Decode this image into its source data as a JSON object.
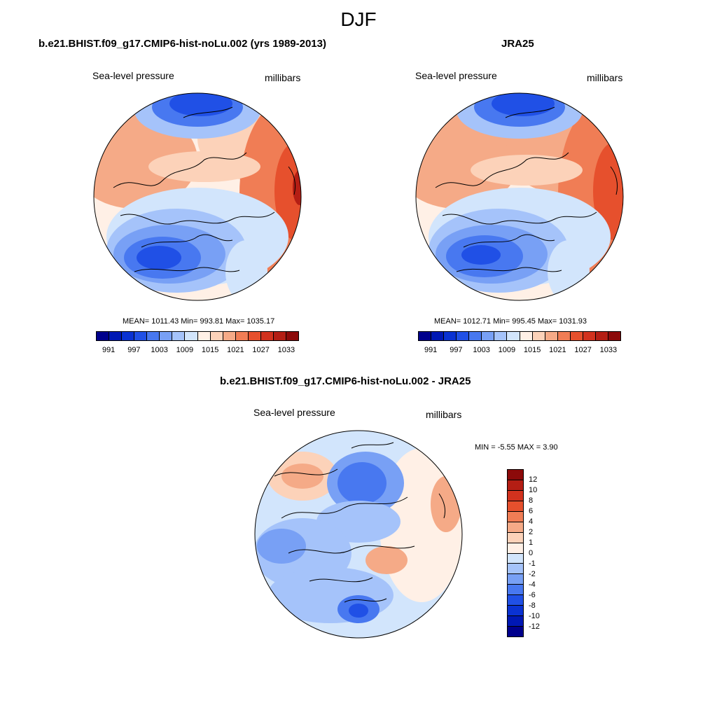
{
  "figure": {
    "title": "DJF"
  },
  "panels": [
    {
      "title": "b.e21.BHIST.f09_g17.CMIP6-hist-noLu.002 (yrs 1989-2013)",
      "variable": "Sea-level pressure",
      "units": "millibars",
      "stats": "MEAN= 1011.43  Min= 993.81  Max= 1035.17"
    },
    {
      "title": "JRA25",
      "variable": "Sea-level pressure",
      "units": "millibars",
      "stats": "MEAN= 1012.71  Min= 995.45  Max= 1031.93"
    },
    {
      "title": "b.e21.BHIST.f09_g17.CMIP6-hist-noLu.002 - JRA25",
      "variable": "Sea-level pressure",
      "units": "millibars",
      "stats": "MIN =  -5.55 MAX =   3.90"
    }
  ],
  "colorbar_abs": {
    "colors": [
      "#00008c",
      "#0018b4",
      "#0a32d2",
      "#2050e6",
      "#4878f0",
      "#78a0f5",
      "#a5c3fa",
      "#d2e5fc",
      "#fff0e6",
      "#fcd2b9",
      "#f5aa87",
      "#f07d55",
      "#e6502d",
      "#d2321e",
      "#b41e14",
      "#8c0a0a"
    ],
    "labels": [
      "991",
      "997",
      "1003",
      "1009",
      "1015",
      "1021",
      "1027",
      "1033"
    ]
  },
  "colorbar_diff": {
    "colors": [
      "#00008c",
      "#0018b4",
      "#0a32d2",
      "#2050e6",
      "#4878f0",
      "#78a0f5",
      "#a5c3fa",
      "#d2e5fc",
      "#fff0e6",
      "#fcd2b9",
      "#f5aa87",
      "#f07d55",
      "#e6502d",
      "#d2321e",
      "#b41e14",
      "#8c0a0a"
    ],
    "labels": [
      "12",
      "10",
      "8",
      "6",
      "4",
      "2",
      "1",
      "0",
      "-1",
      "-2",
      "-4",
      "-6",
      "-8",
      "-10",
      "-12"
    ]
  },
  "map_colors": {
    "deep_low": "#2050e6",
    "low": "#4878f0",
    "mid_low": "#a5c3fa",
    "near_zero": "#d2e5fc",
    "neutral": "#fff0e6",
    "mid_high": "#fcd2b9",
    "high": "#f5aa87",
    "higher": "#f07d55",
    "highest": "#e6502d",
    "extreme": "#b41e14"
  }
}
